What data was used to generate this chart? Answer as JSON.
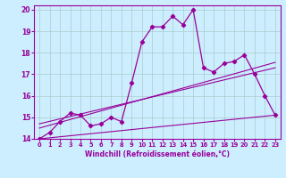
{
  "xlabel": "Windchill (Refroidissement éolien,°C)",
  "bg_color": "#cceeff",
  "line_color": "#990099",
  "grid_color": "#aacccc",
  "xlim": [
    -0.5,
    23.5
  ],
  "ylim": [
    14,
    20.2
  ],
  "xticks": [
    0,
    1,
    2,
    3,
    4,
    5,
    6,
    7,
    8,
    9,
    10,
    11,
    12,
    13,
    14,
    15,
    16,
    17,
    18,
    19,
    20,
    21,
    22,
    23
  ],
  "yticks": [
    14,
    15,
    16,
    17,
    18,
    19,
    20
  ],
  "hours": [
    0,
    1,
    2,
    3,
    4,
    5,
    6,
    7,
    8,
    9,
    10,
    11,
    12,
    13,
    14,
    15,
    16,
    17,
    18,
    19,
    20,
    21,
    22,
    23
  ],
  "temp": [
    14.0,
    14.3,
    14.8,
    15.2,
    15.1,
    14.6,
    14.7,
    15.0,
    14.8,
    16.6,
    18.5,
    19.2,
    19.2,
    19.7,
    19.3,
    20.0,
    17.3,
    17.1,
    17.5,
    17.6,
    17.9,
    17.0,
    16.0,
    15.1
  ],
  "line1": [
    [
      0,
      23
    ],
    [
      14.0,
      15.1
    ]
  ],
  "line2": [
    [
      0,
      23
    ],
    [
      14.7,
      17.3
    ]
  ],
  "line3": [
    [
      0,
      23
    ],
    [
      14.5,
      17.55
    ]
  ]
}
